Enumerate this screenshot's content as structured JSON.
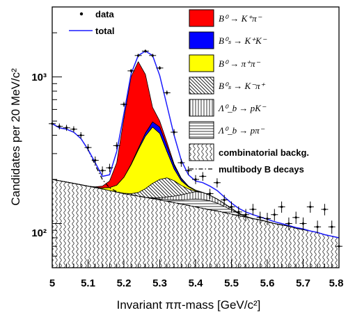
{
  "chart_data": {
    "type": "area",
    "xlabel": "Invariant  ππ-mass [GeV/c²]",
    "ylabel": "Candidates per 20 MeV/c²",
    "xlim": [
      5.0,
      5.8
    ],
    "ylim": [
      50,
      3000
    ],
    "yscale": "log",
    "x_ticks": [
      "5",
      "5.1",
      "5.2",
      "5.3",
      "5.4",
      "5.5",
      "5.6",
      "5.7",
      "5.8"
    ],
    "y_tick_labels": [
      "10²",
      "10³"
    ],
    "legend": [
      {
        "label": "data",
        "style": "point"
      },
      {
        "label": "total",
        "style": "line",
        "color": "#1a1aff"
      },
      {
        "label": "B⁰ → K⁺π⁻",
        "style": "fill",
        "color": "#ff0000"
      },
      {
        "label": "B⁰ₛ → K⁺K⁻",
        "style": "fill",
        "color": "#0000ff"
      },
      {
        "label": "B⁰ → π⁺π⁻",
        "style": "fill",
        "color": "#ffff00"
      },
      {
        "label": "B⁰ₛ → K⁻π⁺",
        "style": "hatch-diag"
      },
      {
        "label": "Λ⁰_b → pK⁻",
        "style": "hatch-vert"
      },
      {
        "label": "Λ⁰_b → pπ⁻",
        "style": "hatch-horiz"
      },
      {
        "label": "combinatorial backg.",
        "style": "hatch-wave"
      },
      {
        "label": "multibody B decays",
        "style": "dashdot"
      }
    ],
    "x": [
      5.0,
      5.02,
      5.04,
      5.06,
      5.08,
      5.1,
      5.12,
      5.14,
      5.16,
      5.18,
      5.2,
      5.22,
      5.24,
      5.26,
      5.28,
      5.3,
      5.32,
      5.34,
      5.36,
      5.38,
      5.4,
      5.42,
      5.44,
      5.46,
      5.48,
      5.5,
      5.52,
      5.54,
      5.56,
      5.58,
      5.6,
      5.62,
      5.64,
      5.66,
      5.68,
      5.7,
      5.72,
      5.74,
      5.76,
      5.78,
      5.8
    ],
    "series": [
      {
        "name": "combinatorial backg.",
        "values": [
          200,
          196,
          192,
          188,
          184,
          180,
          176,
          172,
          168,
          164,
          160,
          157,
          154,
          151,
          148,
          145,
          142,
          139,
          136,
          133,
          130,
          127,
          124,
          122,
          119,
          116,
          113,
          111,
          108,
          106,
          103,
          100,
          98,
          96,
          93,
          91,
          89,
          87,
          84,
          82,
          80
        ]
      },
      {
        "name": "multibody B decays",
        "values": [
          480,
          450,
          440,
          420,
          380,
          320,
          250,
          200,
          175,
          165,
          160,
          157,
          154,
          151,
          148,
          145,
          142,
          139,
          136,
          133,
          130,
          127,
          124,
          122,
          119,
          116,
          113,
          111,
          108,
          106,
          103,
          100,
          98,
          96,
          93,
          91,
          89,
          87,
          84,
          82,
          80
        ]
      },
      {
        "name": "Λ⁰_b → pπ⁻",
        "values": [
          200,
          196,
          192,
          188,
          184,
          180,
          176,
          172,
          168,
          164,
          160,
          157,
          154,
          151,
          149,
          147,
          146,
          145,
          145,
          146,
          147,
          146,
          143,
          138,
          131,
          124,
          117,
          112,
          108,
          106,
          103,
          100,
          98,
          96,
          93,
          91,
          89,
          87,
          84,
          82,
          80
        ]
      },
      {
        "name": "Λ⁰_b → pK⁻",
        "values": [
          200,
          196,
          192,
          188,
          184,
          180,
          176,
          172,
          168,
          164,
          160,
          157,
          154,
          151,
          150,
          150,
          152,
          154,
          157,
          161,
          165,
          163,
          156,
          147,
          137,
          127,
          118,
          112,
          108,
          106,
          103,
          100,
          98,
          96,
          93,
          91,
          89,
          87,
          84,
          82,
          80
        ]
      },
      {
        "name": "B⁰ₛ → K⁻π⁺",
        "values": [
          200,
          196,
          192,
          188,
          184,
          180,
          176,
          172,
          168,
          164,
          161,
          160,
          163,
          173,
          188,
          200,
          205,
          196,
          182,
          172,
          166,
          163,
          156,
          147,
          137,
          127,
          118,
          112,
          108,
          106,
          103,
          100,
          98,
          96,
          93,
          91,
          89,
          87,
          84,
          82,
          80
        ]
      },
      {
        "name": "B⁰ → π⁺π⁻",
        "values": [
          200,
          196,
          192,
          188,
          184,
          180,
          177,
          175,
          176,
          183,
          207,
          252,
          318,
          395,
          455,
          412,
          310,
          236,
          196,
          178,
          168,
          163,
          156,
          147,
          137,
          127,
          118,
          112,
          108,
          106,
          103,
          100,
          98,
          96,
          93,
          91,
          89,
          87,
          84,
          82,
          80
        ]
      },
      {
        "name": "B⁰ₛ → K⁺K⁻",
        "values": [
          200,
          196,
          192,
          188,
          184,
          180,
          177,
          175,
          176,
          183,
          207,
          254,
          325,
          414,
          494,
          455,
          340,
          250,
          202,
          180,
          169,
          163,
          156,
          147,
          137,
          127,
          118,
          112,
          108,
          106,
          103,
          100,
          98,
          96,
          93,
          91,
          89,
          87,
          84,
          82,
          80
        ]
      },
      {
        "name": "B⁰ → K⁺π⁻",
        "values": [
          200,
          196,
          192,
          188,
          184,
          180,
          178,
          180,
          195,
          260,
          520,
          1000,
          1270,
          1040,
          620,
          500,
          360,
          255,
          204,
          180,
          169,
          163,
          156,
          147,
          137,
          127,
          118,
          112,
          108,
          106,
          103,
          100,
          98,
          96,
          93,
          91,
          89,
          87,
          84,
          82,
          80
        ]
      },
      {
        "name": "total",
        "values": [
          480,
          450,
          440,
          420,
          380,
          320,
          260,
          210,
          215,
          310,
          560,
          1050,
          1400,
          1500,
          1400,
          1020,
          640,
          400,
          270,
          215,
          195,
          190,
          180,
          168,
          152,
          138,
          127,
          120,
          115,
          111,
          107,
          103,
          100,
          97,
          94,
          92,
          89,
          87,
          84,
          82,
          80
        ]
      },
      {
        "name": "data",
        "values": [
          480,
          460,
          450,
          440,
          400,
          330,
          270,
          230,
          240,
          340,
          650,
          1100,
          1400,
          1500,
          1400,
          1150,
          780,
          420,
          260,
          230,
          200,
          210,
          160,
          190,
          145,
          130,
          120,
          115,
          125,
          110,
          108,
          115,
          130,
          100,
          110,
          100,
          130,
          95,
          125,
          95,
          70
        ]
      }
    ]
  }
}
